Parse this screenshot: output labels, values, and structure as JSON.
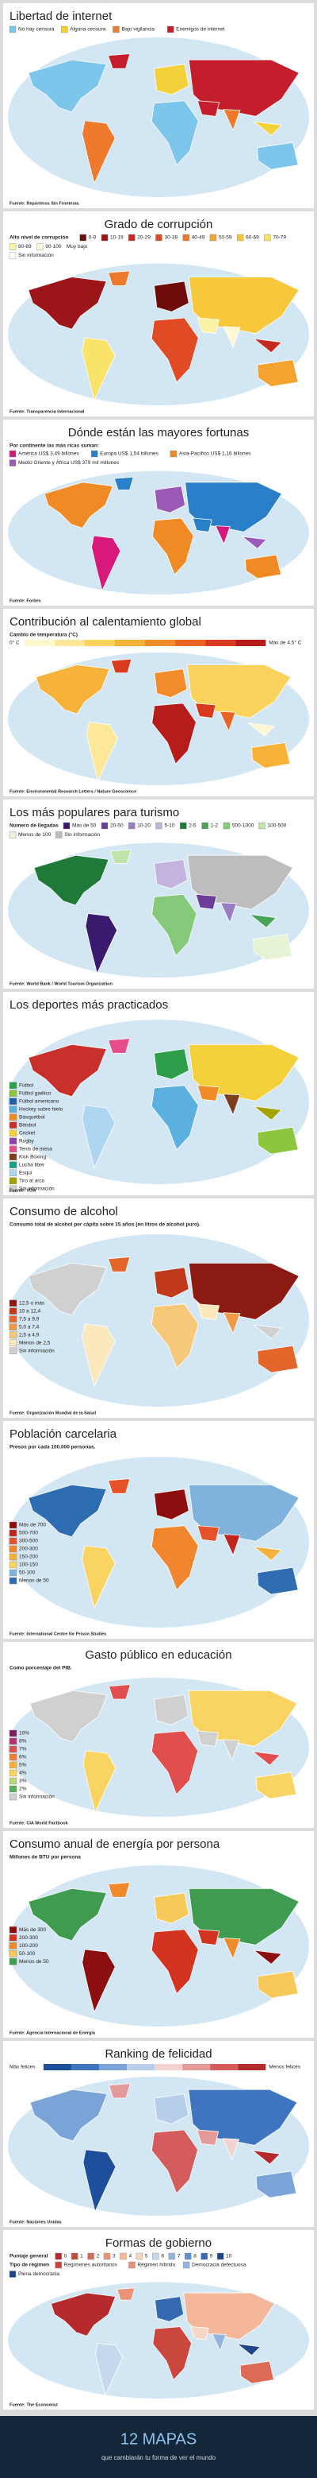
{
  "panels": [
    {
      "title": "Libertad de internet",
      "legend": [
        {
          "label": "No hay censura",
          "color": "#7cc6ec"
        },
        {
          "label": "Alguna censura",
          "color": "#f4d03a"
        },
        {
          "label": "Bajo vigilancia",
          "color": "#ee7b2c"
        },
        {
          "label": "Enemigos de internet",
          "color": "#c41e2d"
        }
      ],
      "source": "Fuente: Reporteros Sin Fronteras"
    },
    {
      "title": "Grado de corrupción",
      "legend_title": "Alto nivel de corrupción",
      "legend": [
        {
          "label": "0-9",
          "color": "#6e0b0b"
        },
        {
          "label": "10-19",
          "color": "#9c1519"
        },
        {
          "label": "20-29",
          "color": "#c6291f"
        },
        {
          "label": "30-39",
          "color": "#e04a24"
        },
        {
          "label": "40-49",
          "color": "#ee792b"
        },
        {
          "label": "50-59",
          "color": "#f4a331"
        },
        {
          "label": "60-69",
          "color": "#f8c83c"
        },
        {
          "label": "70-79",
          "color": "#fae36a"
        },
        {
          "label": "80-89",
          "color": "#fcf1a4"
        },
        {
          "label": "90-100",
          "color": "#fff8d5"
        }
      ],
      "legend_end": "Muy bajo",
      "legend2": [
        {
          "label": "Sin información",
          "color": "#ffffff"
        }
      ],
      "source": "Fuente: Transparencia Internacional"
    },
    {
      "title": "Dónde están las mayores fortunas",
      "subtitle": "Por continente las más ricas suman:",
      "legend": [
        {
          "label": "América US$ 3,49 billones",
          "color": "#d6197b"
        },
        {
          "label": "Europa US$ 1,54 billones",
          "color": "#2a7fc9"
        },
        {
          "label": "Asia-Pacífico US$ 1,16 billones",
          "color": "#f08a24"
        },
        {
          "label": "Medio Oriente y África US$ 379 mil millones",
          "color": "#9b59b6"
        }
      ],
      "source": "Fuente: Forbes"
    },
    {
      "title": "Contribución al calentamiento global",
      "scale": {
        "title": "Cambio de temperatura (°C)",
        "start": "0° C",
        "end": "Más de 4,5° C",
        "colors": [
          "#fff7d0",
          "#fde89a",
          "#fbd35c",
          "#f7b23a",
          "#f28c2a",
          "#e96322",
          "#d93a1d",
          "#b51c1a"
        ]
      },
      "source": "Fuente: Environmental Research Letters / Nature Geoscience"
    },
    {
      "title": "Los más populares para turismo",
      "legend_title": "Número de llegadas",
      "legend": [
        {
          "label": "Más de 50",
          "color": "#3a1a6e"
        },
        {
          "label": "20-50",
          "color": "#6a3d9a"
        },
        {
          "label": "10-20",
          "color": "#9a7cc4"
        },
        {
          "label": "5-10",
          "color": "#c4b3df"
        },
        {
          "label": "2-5",
          "color": "#1f7a3a"
        },
        {
          "label": "1-2",
          "color": "#48a456"
        },
        {
          "label": "500-1000",
          "color": "#86c97b"
        },
        {
          "label": "100-500",
          "color": "#bfe3a8"
        },
        {
          "label": "Menos de 100",
          "color": "#e6f3d4"
        },
        {
          "label": "Sin información",
          "color": "#bdbdbd"
        }
      ],
      "source": "Fuente: World Bank / World Tourism Organization"
    },
    {
      "title": "Los deportes más practicados",
      "legend": [
        {
          "label": "Fútbol",
          "color": "#2e9e4a"
        },
        {
          "label": "Fútbol gaélico",
          "color": "#8cc63f"
        },
        {
          "label": "Fútbol americano",
          "color": "#1f5fa8"
        },
        {
          "label": "Hockey sobre hielo",
          "color": "#5bb0e0"
        },
        {
          "label": "Básquetbol",
          "color": "#f08a24"
        },
        {
          "label": "Béisbol",
          "color": "#c9302c"
        },
        {
          "label": "Cricket",
          "color": "#f4d03a"
        },
        {
          "label": "Rugby",
          "color": "#8e44ad"
        },
        {
          "label": "Tenis de mesa",
          "color": "#e74c8b"
        },
        {
          "label": "Kick Boxing",
          "color": "#7b3f1d"
        },
        {
          "label": "Lucha libre",
          "color": "#16a085"
        },
        {
          "label": "Esquí",
          "color": "#aed6f1"
        },
        {
          "label": "Tiro al arco",
          "color": "#a3a300"
        },
        {
          "label": "Sin información",
          "color": "#d0d0d0"
        }
      ],
      "source": "Fuente: VOA"
    },
    {
      "title": "Consumo de alcohol",
      "subtitle": "Consumo total de alcohol per cápita sobre 15 años (en litros de alcohol puro).",
      "legend": [
        {
          "label": "12,5 o más",
          "color": "#8b1a12"
        },
        {
          "label": "10 a 12,4",
          "color": "#c0391b"
        },
        {
          "label": "7,5 a 9,9",
          "color": "#e3672a"
        },
        {
          "label": "5,0 a 7,4",
          "color": "#f19a45"
        },
        {
          "label": "2,5 a 4,9",
          "color": "#f7c77a"
        },
        {
          "label": "Menos de 2,5",
          "color": "#fbe8bd"
        },
        {
          "label": "Sin información",
          "color": "#d0d0d0"
        }
      ],
      "source": "Fuente: Organización Mundial de la Salud"
    },
    {
      "title": "Población carcelaria",
      "subtitle": "Presos por cada 100.000 personas.",
      "legend": [
        {
          "label": "Más de 700",
          "color": "#8b0f0f"
        },
        {
          "label": "500-700",
          "color": "#c0261b"
        },
        {
          "label": "300-500",
          "color": "#e5522a"
        },
        {
          "label": "200-300",
          "color": "#f2862f"
        },
        {
          "label": "150-200",
          "color": "#f7b23c"
        },
        {
          "label": "100-150",
          "color": "#fad462"
        },
        {
          "label": "50-100",
          "color": "#7fb2dc"
        },
        {
          "label": "Menos de 50",
          "color": "#2f6db3"
        }
      ],
      "source": "Fuente: International Centre for Prison Studies"
    },
    {
      "title": "Gasto público en educación",
      "subtitle": "Como porcentaje del PIB.",
      "legend": [
        {
          "label": "10%",
          "color": "#7b1c5e"
        },
        {
          "label": "8%",
          "color": "#b2306f"
        },
        {
          "label": "7%",
          "color": "#e04e4e"
        },
        {
          "label": "6%",
          "color": "#f07e33"
        },
        {
          "label": "5%",
          "color": "#f7b23c"
        },
        {
          "label": "4%",
          "color": "#fad462"
        },
        {
          "label": "3%",
          "color": "#b9d77a"
        },
        {
          "label": "2%",
          "color": "#5cae5c"
        },
        {
          "label": "Sin información",
          "color": "#d0d0d0"
        }
      ],
      "source": "Fuente: CIA World Factbook"
    },
    {
      "title": "Consumo anual de energía por persona",
      "legend_title": "Millones de BTU por persona",
      "legend": [
        {
          "label": "Más de 300",
          "color": "#8b0f0f"
        },
        {
          "label": "200-300",
          "color": "#d3341f"
        },
        {
          "label": "100-200",
          "color": "#f08a2c"
        },
        {
          "label": "50-100",
          "color": "#f7c95a"
        },
        {
          "label": "Menos de 50",
          "color": "#3f9b50"
        }
      ],
      "source": "Fuente: Agencia Internacional de Energía"
    },
    {
      "title": "Ranking de felicidad",
      "scale": {
        "start": "Más felices",
        "end": "Menos felices",
        "colors": [
          "#1d4f9c",
          "#3e74c0",
          "#7aa4d8",
          "#b8cfea",
          "#f3d2d2",
          "#e59a9a",
          "#d45c5c",
          "#b52a2a"
        ]
      },
      "source": "Fuente: Naciones Unidas"
    },
    {
      "title": "Formas de gobierno",
      "legend_title": "Puntaje general",
      "legend": [
        {
          "label": "0",
          "color": "#b52a2a"
        },
        {
          "label": "1",
          "color": "#c9473c"
        },
        {
          "label": "2",
          "color": "#dc6b56"
        },
        {
          "label": "3",
          "color": "#ec9276"
        },
        {
          "label": "4",
          "color": "#f5b79c"
        },
        {
          "label": "5",
          "color": "#f8d6c6"
        },
        {
          "label": "6",
          "color": "#c6d8ee"
        },
        {
          "label": "7",
          "color": "#93b6e0"
        },
        {
          "label": "8",
          "color": "#5f90cc"
        },
        {
          "label": "9",
          "color": "#3569b0"
        },
        {
          "label": "10",
          "color": "#1c468a"
        }
      ],
      "legend2_title": "Tipo de régimen",
      "legend2": [
        {
          "label": "Regímenes autoritarios",
          "color": "#c9473c"
        },
        {
          "label": "Régimen híbrido",
          "color": "#ec9276"
        },
        {
          "label": "Democracia defectuosa",
          "color": "#93b6e0"
        },
        {
          "label": "Plena democracia",
          "color": "#1c468a"
        }
      ],
      "source": "Fuente: The Economist"
    }
  ],
  "footer": {
    "title": "12 MAPAS",
    "subtitle": "que cambiarán tu forma de ver el mundo"
  }
}
